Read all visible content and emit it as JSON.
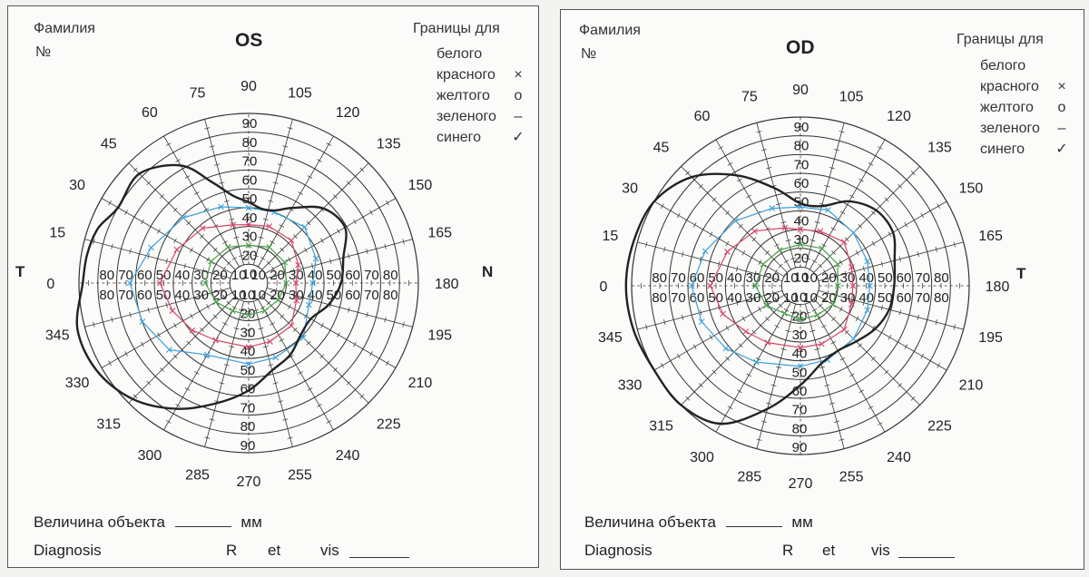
{
  "header": {
    "surname_label": "Фамилия",
    "number_label": "№",
    "borders_title": "Границы для",
    "legend": [
      {
        "label": "белого",
        "marker": ""
      },
      {
        "label": "красного",
        "marker": "×"
      },
      {
        "label": "желтого",
        "marker": "о"
      },
      {
        "label": "зеленого",
        "marker": "–"
      },
      {
        "label": "синего",
        "marker": "✓"
      }
    ]
  },
  "eyes": {
    "left": {
      "title": "OS",
      "side_left": "T",
      "side_right": "N"
    },
    "right": {
      "title": "OD",
      "side_left": "",
      "side_right": "T"
    }
  },
  "meridian_labels": [
    "0",
    "15",
    "30",
    "45",
    "60",
    "75",
    "90",
    "105",
    "120",
    "135",
    "150",
    "165",
    "180",
    "195",
    "210",
    "225",
    "240",
    "255",
    "270",
    "285",
    "300",
    "315",
    "330",
    "345"
  ],
  "ring_labels": [
    "10",
    "20",
    "30",
    "40",
    "50",
    "60",
    "70",
    "80",
    "90"
  ],
  "footer": {
    "object_size_label": "Величина объекта",
    "object_size_unit": "мм",
    "diagnosis_label": "Diagnosis",
    "r_label": "R",
    "et_label": "et",
    "vis_label": "vis"
  },
  "colors": {
    "white_field": "#222222",
    "red_field": "#d6456a",
    "blue_field": "#3ea0d8",
    "green_field": "#4a9e4a",
    "grid": "#333333"
  },
  "fields": {
    "left": {
      "white": [
        [
          0,
          88
        ],
        [
          10,
          87
        ],
        [
          20,
          85
        ],
        [
          30,
          80
        ],
        [
          45,
          82
        ],
        [
          60,
          72
        ],
        [
          70,
          57
        ],
        [
          80,
          47
        ],
        [
          90,
          43
        ],
        [
          100,
          40
        ],
        [
          110,
          41
        ],
        [
          120,
          46
        ],
        [
          135,
          56
        ],
        [
          150,
          59
        ],
        [
          165,
          52
        ],
        [
          180,
          49
        ],
        [
          195,
          44
        ],
        [
          210,
          38
        ],
        [
          225,
          39
        ],
        [
          240,
          44
        ],
        [
          255,
          48
        ],
        [
          270,
          57
        ],
        [
          285,
          66
        ],
        [
          300,
          77
        ],
        [
          315,
          87
        ],
        [
          330,
          93
        ],
        [
          345,
          94
        ]
      ],
      "blue": [
        [
          0,
          63
        ],
        [
          20,
          55
        ],
        [
          45,
          49
        ],
        [
          70,
          43
        ],
        [
          90,
          40
        ],
        [
          110,
          40
        ],
        [
          135,
          42
        ],
        [
          160,
          38
        ],
        [
          180,
          34
        ],
        [
          200,
          34
        ],
        [
          225,
          41
        ],
        [
          250,
          42
        ],
        [
          270,
          43
        ],
        [
          300,
          44
        ],
        [
          320,
          55
        ],
        [
          340,
          60
        ]
      ],
      "red": [
        [
          0,
          47
        ],
        [
          25,
          42
        ],
        [
          50,
          38
        ],
        [
          75,
          32
        ],
        [
          90,
          31
        ],
        [
          110,
          32
        ],
        [
          135,
          32
        ],
        [
          160,
          28
        ],
        [
          180,
          25
        ],
        [
          200,
          27
        ],
        [
          225,
          32
        ],
        [
          250,
          33
        ],
        [
          270,
          34
        ],
        [
          300,
          35
        ],
        [
          320,
          39
        ],
        [
          340,
          43
        ]
      ],
      "green": [
        [
          0,
          23
        ],
        [
          30,
          23
        ],
        [
          60,
          22
        ],
        [
          90,
          20
        ],
        [
          120,
          22
        ],
        [
          150,
          22
        ],
        [
          180,
          20
        ],
        [
          210,
          18
        ],
        [
          240,
          17
        ],
        [
          270,
          17
        ],
        [
          300,
          17
        ],
        [
          330,
          20
        ]
      ]
    },
    "right": {
      "white": [
        [
          0,
          93
        ],
        [
          15,
          92
        ],
        [
          30,
          90
        ],
        [
          45,
          82
        ],
        [
          60,
          68
        ],
        [
          75,
          54
        ],
        [
          90,
          44
        ],
        [
          105,
          44
        ],
        [
          120,
          52
        ],
        [
          135,
          57
        ],
        [
          150,
          57
        ],
        [
          165,
          52
        ],
        [
          180,
          50
        ],
        [
          195,
          49
        ],
        [
          210,
          46
        ],
        [
          225,
          42
        ],
        [
          240,
          40
        ],
        [
          255,
          43
        ],
        [
          270,
          53
        ],
        [
          285,
          68
        ],
        [
          300,
          85
        ],
        [
          315,
          90
        ],
        [
          330,
          90
        ],
        [
          345,
          92
        ]
      ],
      "blue": [
        [
          0,
          58
        ],
        [
          20,
          54
        ],
        [
          45,
          49
        ],
        [
          70,
          44
        ],
        [
          90,
          42
        ],
        [
          110,
          43
        ],
        [
          135,
          40
        ],
        [
          160,
          38
        ],
        [
          180,
          37
        ],
        [
          200,
          38
        ],
        [
          225,
          40
        ],
        [
          250,
          42
        ],
        [
          270,
          43
        ],
        [
          300,
          47
        ],
        [
          320,
          52
        ],
        [
          340,
          56
        ]
      ],
      "red": [
        [
          0,
          48
        ],
        [
          25,
          43
        ],
        [
          50,
          38
        ],
        [
          75,
          32
        ],
        [
          90,
          30
        ],
        [
          110,
          31
        ],
        [
          135,
          33
        ],
        [
          160,
          29
        ],
        [
          180,
          28
        ],
        [
          200,
          29
        ],
        [
          225,
          33
        ],
        [
          250,
          33
        ],
        [
          270,
          33
        ],
        [
          300,
          35
        ],
        [
          320,
          38
        ],
        [
          340,
          44
        ]
      ],
      "green": [
        [
          0,
          24
        ],
        [
          30,
          23
        ],
        [
          60,
          22
        ],
        [
          90,
          22
        ],
        [
          120,
          23
        ],
        [
          150,
          23
        ],
        [
          180,
          20
        ],
        [
          210,
          20
        ],
        [
          240,
          18
        ],
        [
          270,
          18
        ],
        [
          300,
          17
        ],
        [
          330,
          21
        ]
      ]
    }
  }
}
